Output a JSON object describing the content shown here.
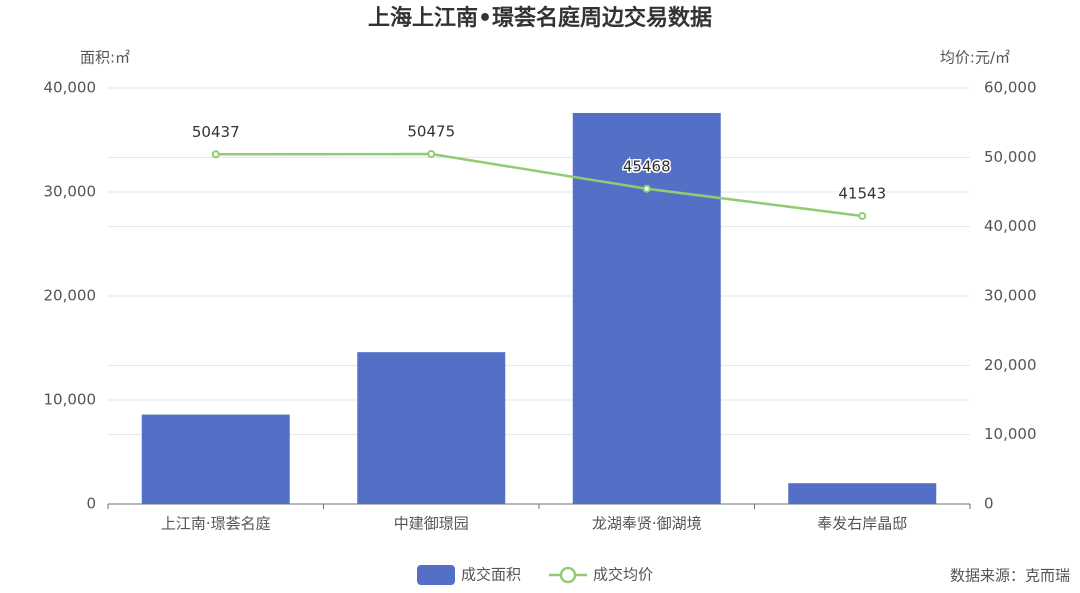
{
  "chart_data": {
    "type": "bar-line",
    "title": "上海上江南•璟荟名庭周边交易数据",
    "y_label": "面积:㎡",
    "y2_label": "均价:元/㎡",
    "source": "数据来源：克而瑞",
    "categories": [
      "上江南·璟荟名庭",
      "中建御璟园",
      "龙湖奉贤·御湖境",
      "奉发右岸晶邸"
    ],
    "series": [
      {
        "name": "成交面积",
        "type": "bar",
        "color": "#5470c6",
        "values": [
          8600,
          14600,
          37600,
          2000
        ]
      },
      {
        "name": "成交均价",
        "type": "line",
        "color": "#91cc75",
        "axis": "y2",
        "values": [
          50437,
          50475,
          45468,
          41543
        ]
      }
    ],
    "ylim": [
      0,
      40000
    ],
    "yticks": [
      0,
      {
        "value": 10000,
        "label": "10,000"
      },
      {
        "value": 20000,
        "label": "20,000"
      },
      {
        "value": 30000,
        "label": "30,000"
      },
      {
        "value": 40000,
        "label": "40,000"
      }
    ],
    "y2lim": [
      0,
      60000
    ],
    "y2ticks": [
      0,
      {
        "value": 10000,
        "label": "10,000"
      },
      {
        "value": 20000,
        "label": "20,000"
      },
      {
        "value": 30000,
        "label": "30,000"
      },
      {
        "value": 40000,
        "label": "40,000"
      },
      {
        "value": 50000,
        "label": "50,000"
      },
      {
        "value": 60000,
        "label": "60,000"
      }
    ],
    "grid": true
  }
}
